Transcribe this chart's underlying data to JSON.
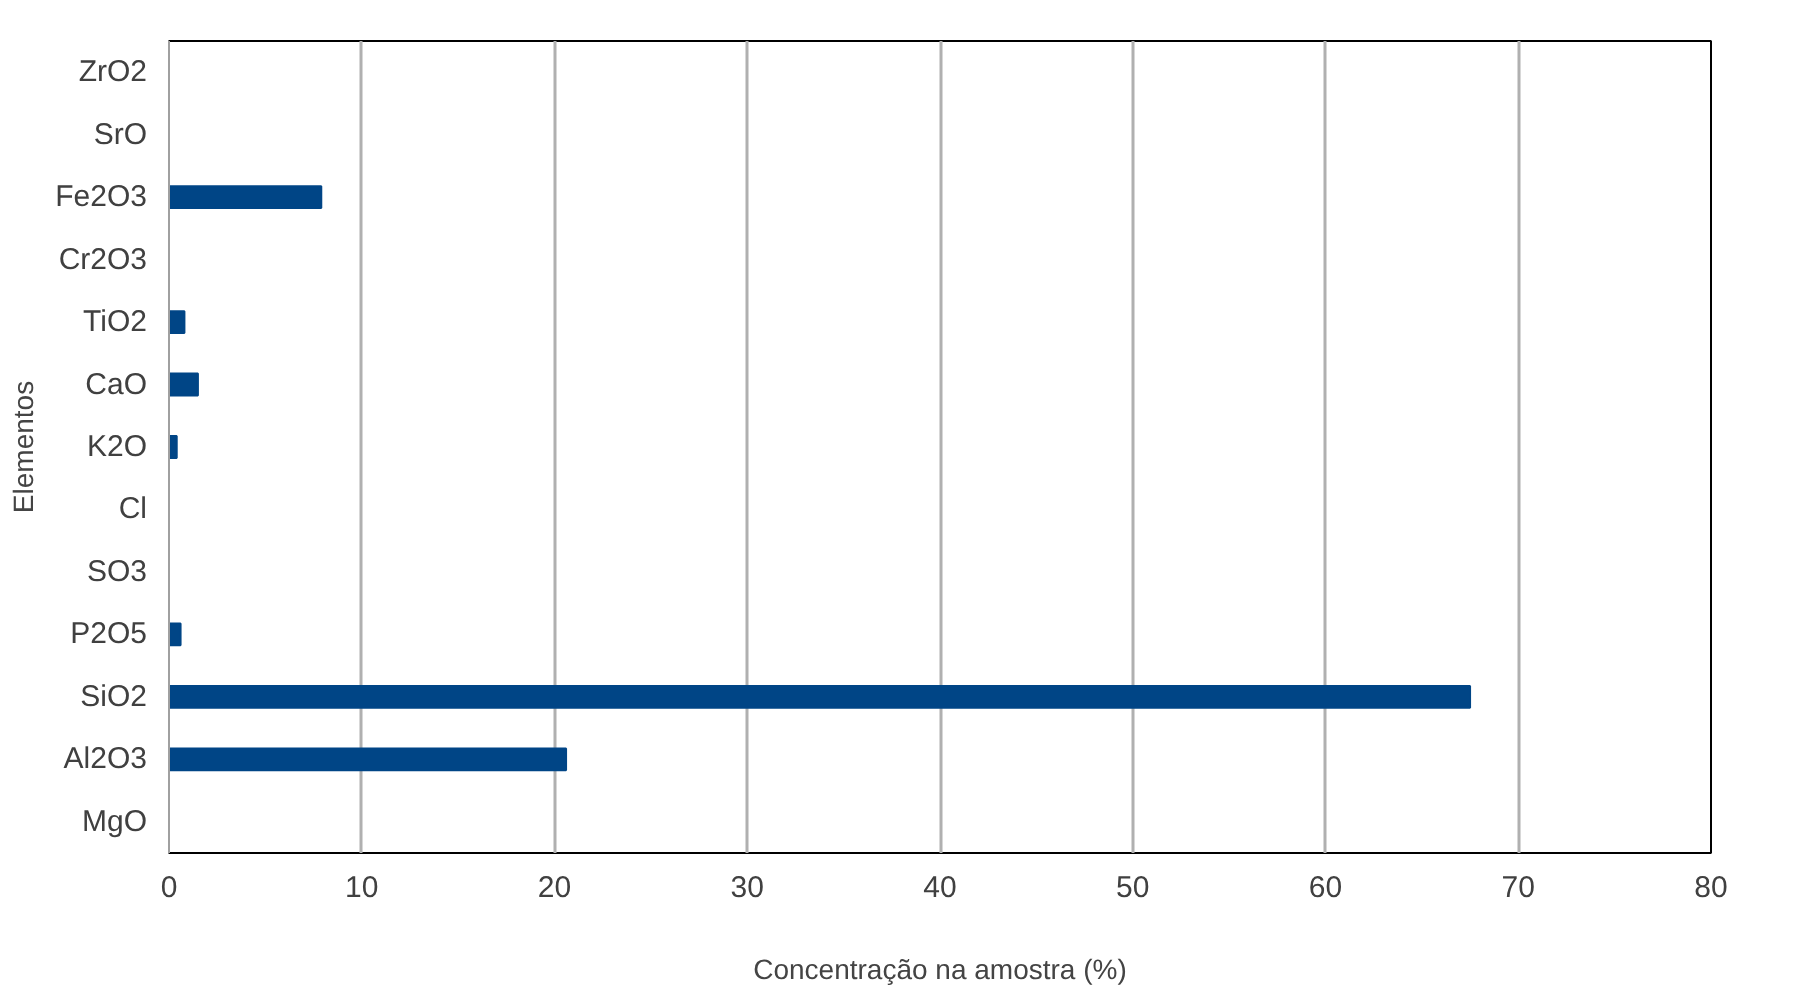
{
  "chart_data": {
    "type": "bar",
    "orientation": "horizontal",
    "xlabel": "Concentração na amostra (%)",
    "ylabel": "Elementos",
    "categories": [
      "ZrO2",
      "SrO",
      "Fe2O3",
      "Cr2O3",
      "TiO2",
      "CaO",
      "K2O",
      "Cl",
      "SO3",
      "P2O5",
      "SiO2",
      "Al2O3",
      "MgO"
    ],
    "values": [
      0,
      0,
      7.9,
      0,
      0.8,
      1.5,
      0.4,
      0,
      0,
      0.6,
      67.5,
      20.6,
      0
    ],
    "color": "#004586",
    "xlim": [
      0,
      80
    ],
    "xticks": [
      0,
      10,
      20,
      30,
      40,
      50,
      60,
      70,
      80
    ],
    "grid": "x"
  }
}
